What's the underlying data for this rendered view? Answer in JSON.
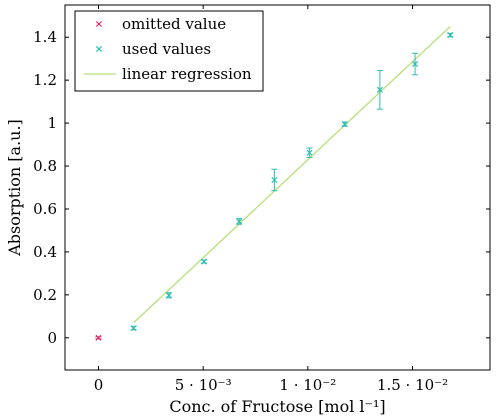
{
  "chart_data": {
    "type": "scatter",
    "xlabel": "Conc. of Fructose [mol l⁻¹]",
    "ylabel": "Absorption [a.u.]",
    "xlim": [
      -0.0016,
      0.0187
    ],
    "ylim": [
      -0.15,
      1.55
    ],
    "x_ticks": [
      {
        "value": 0,
        "label": "0"
      },
      {
        "value": 0.005,
        "label": "5 · 10⁻³"
      },
      {
        "value": 0.01,
        "label": "1 · 10⁻²"
      },
      {
        "value": 0.015,
        "label": "1.5 · 10⁻²"
      }
    ],
    "y_ticks": [
      {
        "value": 0,
        "label": "0"
      },
      {
        "value": 0.2,
        "label": "0.2"
      },
      {
        "value": 0.4,
        "label": "0.4"
      },
      {
        "value": 0.6,
        "label": "0.6"
      },
      {
        "value": 0.8,
        "label": "0.8"
      },
      {
        "value": 1.0,
        "label": "1"
      },
      {
        "value": 1.2,
        "label": "1.2"
      },
      {
        "value": 1.4,
        "label": "1.4"
      }
    ],
    "grid": false,
    "legend_position": "top-left",
    "series": [
      {
        "name": "omitted value",
        "marker": "x",
        "color": "#d6336c",
        "points": [
          {
            "x": 0.0,
            "y": 0.0,
            "err": 0.005
          }
        ]
      },
      {
        "name": "used values",
        "marker": "x",
        "color": "#2bbfb0",
        "points": [
          {
            "x": 0.00168,
            "y": 0.045,
            "err": 0.008
          },
          {
            "x": 0.00336,
            "y": 0.198,
            "err": 0.012
          },
          {
            "x": 0.00504,
            "y": 0.355,
            "err": 0.007
          },
          {
            "x": 0.00672,
            "y": 0.542,
            "err": 0.013
          },
          {
            "x": 0.0084,
            "y": 0.735,
            "err": 0.05
          },
          {
            "x": 0.01008,
            "y": 0.862,
            "err": 0.022
          },
          {
            "x": 0.01176,
            "y": 0.995,
            "err": 0.01
          },
          {
            "x": 0.01344,
            "y": 1.155,
            "err": 0.09
          },
          {
            "x": 0.01512,
            "y": 1.275,
            "err": 0.05
          },
          {
            "x": 0.0168,
            "y": 1.41,
            "err": 0.008
          }
        ]
      },
      {
        "name": "linear regression",
        "type": "line",
        "color": "#b7e07a",
        "points": [
          {
            "x": 0.00168,
            "y": 0.07
          },
          {
            "x": 0.0168,
            "y": 1.45
          }
        ]
      }
    ]
  }
}
